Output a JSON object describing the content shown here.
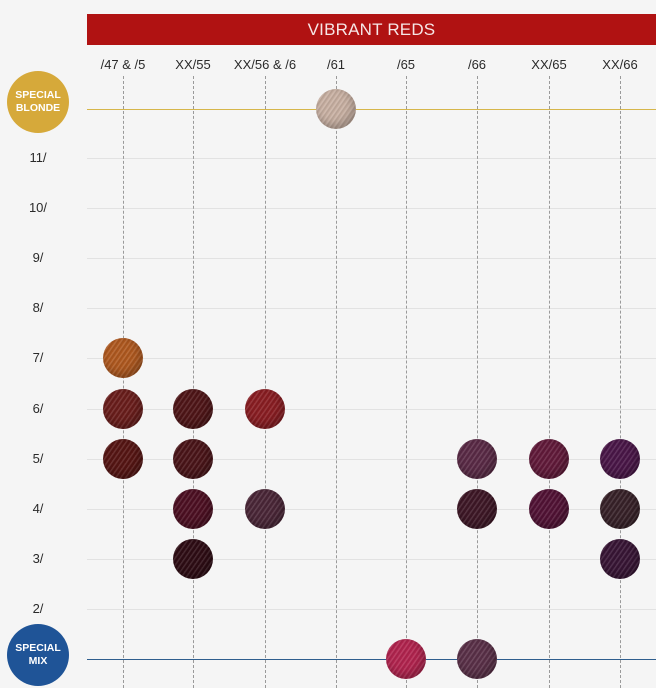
{
  "title": "VIBRANT REDS",
  "colors": {
    "banner": "#b01212",
    "special_blonde": "#d6a93a",
    "special_mix": "#1f5497",
    "background": "#f5f5f5"
  },
  "columns": [
    "/47 & /5",
    "XX/55",
    "XX/56 & /6",
    "/61",
    "/65",
    "/66",
    "XX/65",
    "XX/66"
  ],
  "special_blonde": {
    "line1": "SPECIAL",
    "line2": "BLONDE"
  },
  "special_mix": {
    "line1": "SPECIAL",
    "line2": "MIX"
  },
  "levels": [
    "11/",
    "10/",
    "9/",
    "8/",
    "7/",
    "6/",
    "5/",
    "4/",
    "3/",
    "2/"
  ],
  "swatches": [
    {
      "column": "/61",
      "row": "SPECIAL BLONDE",
      "color": "#c9b1a3"
    },
    {
      "column": "/47 & /5",
      "row": "7/",
      "color": "#b0591f"
    },
    {
      "column": "/47 & /5",
      "row": "6/",
      "color": "#6a1d1b"
    },
    {
      "column": "/47 & /5",
      "row": "5/",
      "color": "#561513"
    },
    {
      "column": "XX/55",
      "row": "6/",
      "color": "#4f1517"
    },
    {
      "column": "XX/55",
      "row": "5/",
      "color": "#4a1418"
    },
    {
      "column": "XX/55",
      "row": "4/",
      "color": "#4d0f22"
    },
    {
      "column": "XX/55",
      "row": "3/",
      "color": "#2e0c14"
    },
    {
      "column": "XX/56 & /6",
      "row": "6/",
      "color": "#8a1d22"
    },
    {
      "column": "XX/56 & /6",
      "row": "4/",
      "color": "#4a2637"
    },
    {
      "column": "/66",
      "row": "5/",
      "color": "#5a2a46"
    },
    {
      "column": "/66",
      "row": "4/",
      "color": "#3e1726"
    },
    {
      "column": "XX/65",
      "row": "5/",
      "color": "#621a3a"
    },
    {
      "column": "XX/65",
      "row": "4/",
      "color": "#521235"
    },
    {
      "column": "XX/66",
      "row": "5/",
      "color": "#4a1648"
    },
    {
      "column": "XX/66",
      "row": "4/",
      "color": "#372128"
    },
    {
      "column": "XX/66",
      "row": "3/",
      "color": "#381535"
    },
    {
      "column": "/65",
      "row": "SPECIAL MIX",
      "color": "#b3244f"
    },
    {
      "column": "/66",
      "row": "SPECIAL MIX",
      "color": "#5a3048"
    }
  ]
}
